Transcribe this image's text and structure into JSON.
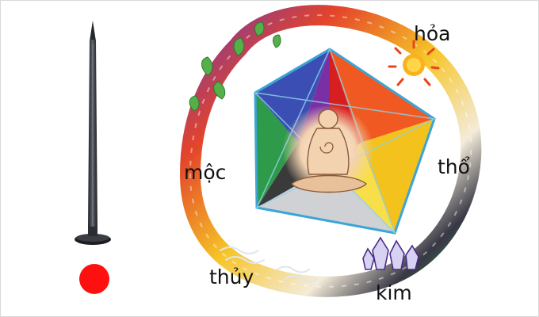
{
  "elements": {
    "hoa": {
      "label": "hỏa",
      "color": "#e01e1e"
    },
    "tho": {
      "label": "thổ",
      "color": "#f2c41a"
    },
    "kim": {
      "label": "kim",
      "color": "#ececec"
    },
    "thuy": {
      "label": "thủy",
      "color": "#2d2d2d"
    },
    "moc": {
      "label": "mộc",
      "color": "#1f9a47"
    }
  },
  "palette": {
    "nail_dark": "#2c2f33",
    "dot_red": "#ff1010",
    "pentagon_outline": "#3aa5d6"
  },
  "icons": [
    "nail-icon",
    "red-dot-icon",
    "sun-icon",
    "leaf-icon",
    "crystal-icon",
    "water-wave-icon",
    "meditating-figure-icon"
  ]
}
